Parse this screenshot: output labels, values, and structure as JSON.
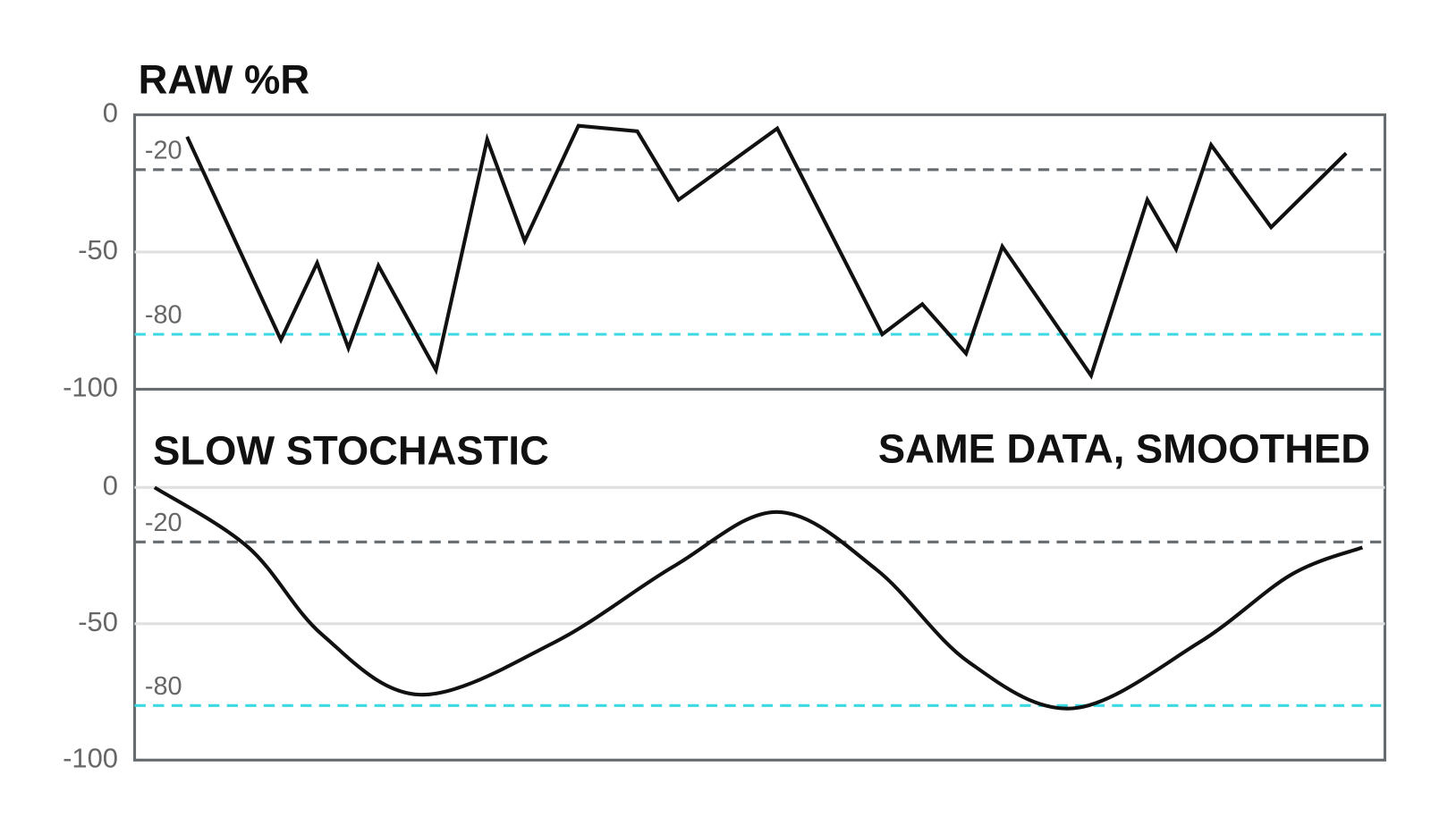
{
  "chart_data": [
    {
      "type": "line",
      "title": "RAW %R",
      "x": [
        4.2,
        11.7,
        14.6,
        17.1,
        19.5,
        24.1,
        28.2,
        31.2,
        35.5,
        40.2,
        43.5,
        51.4,
        59.8,
        63,
        66.5,
        69.4,
        76.5,
        81,
        83.3,
        86.1,
        90.9,
        96.9
      ],
      "values": [
        -8,
        -82,
        -54,
        -85,
        -55,
        -93,
        -9,
        -46,
        -4,
        -6,
        -31,
        -5,
        -80,
        -69,
        -87,
        -48,
        -95,
        -31,
        -49,
        -11,
        -41,
        -14
      ],
      "color": "#111111",
      "smooth": false,
      "xlim": [
        0,
        100
      ],
      "ylim": [
        -100,
        0
      ],
      "yticks": [
        0,
        -50,
        -100
      ],
      "grid": true,
      "refs": [
        {
          "value": -20,
          "label": "-20",
          "color": "#666b70"
        },
        {
          "value": -80,
          "label": "-80",
          "color": "#3dd9e3"
        }
      ]
    },
    {
      "type": "line",
      "title": "SLOW STOCHASTIC",
      "annotation": "SAME DATA, SMOOTHED",
      "x": [
        1.6,
        9.1,
        15,
        22.8,
        33.5,
        43.1,
        51.4,
        59.3,
        66.7,
        75.1,
        85.1,
        92.5,
        98.2
      ],
      "values": [
        0,
        -22,
        -54,
        -76,
        -57,
        -29,
        -9,
        -30,
        -64,
        -81,
        -57,
        -32,
        -22
      ],
      "color": "#111111",
      "smooth": true,
      "xlim": [
        0,
        100
      ],
      "ylim": [
        -100,
        0
      ],
      "yticks": [
        0,
        -50,
        -100
      ],
      "grid": true,
      "refs": [
        {
          "value": -20,
          "label": "-20",
          "color": "#666b70"
        },
        {
          "value": -80,
          "label": "-80",
          "color": "#3dd9e3"
        }
      ]
    }
  ]
}
